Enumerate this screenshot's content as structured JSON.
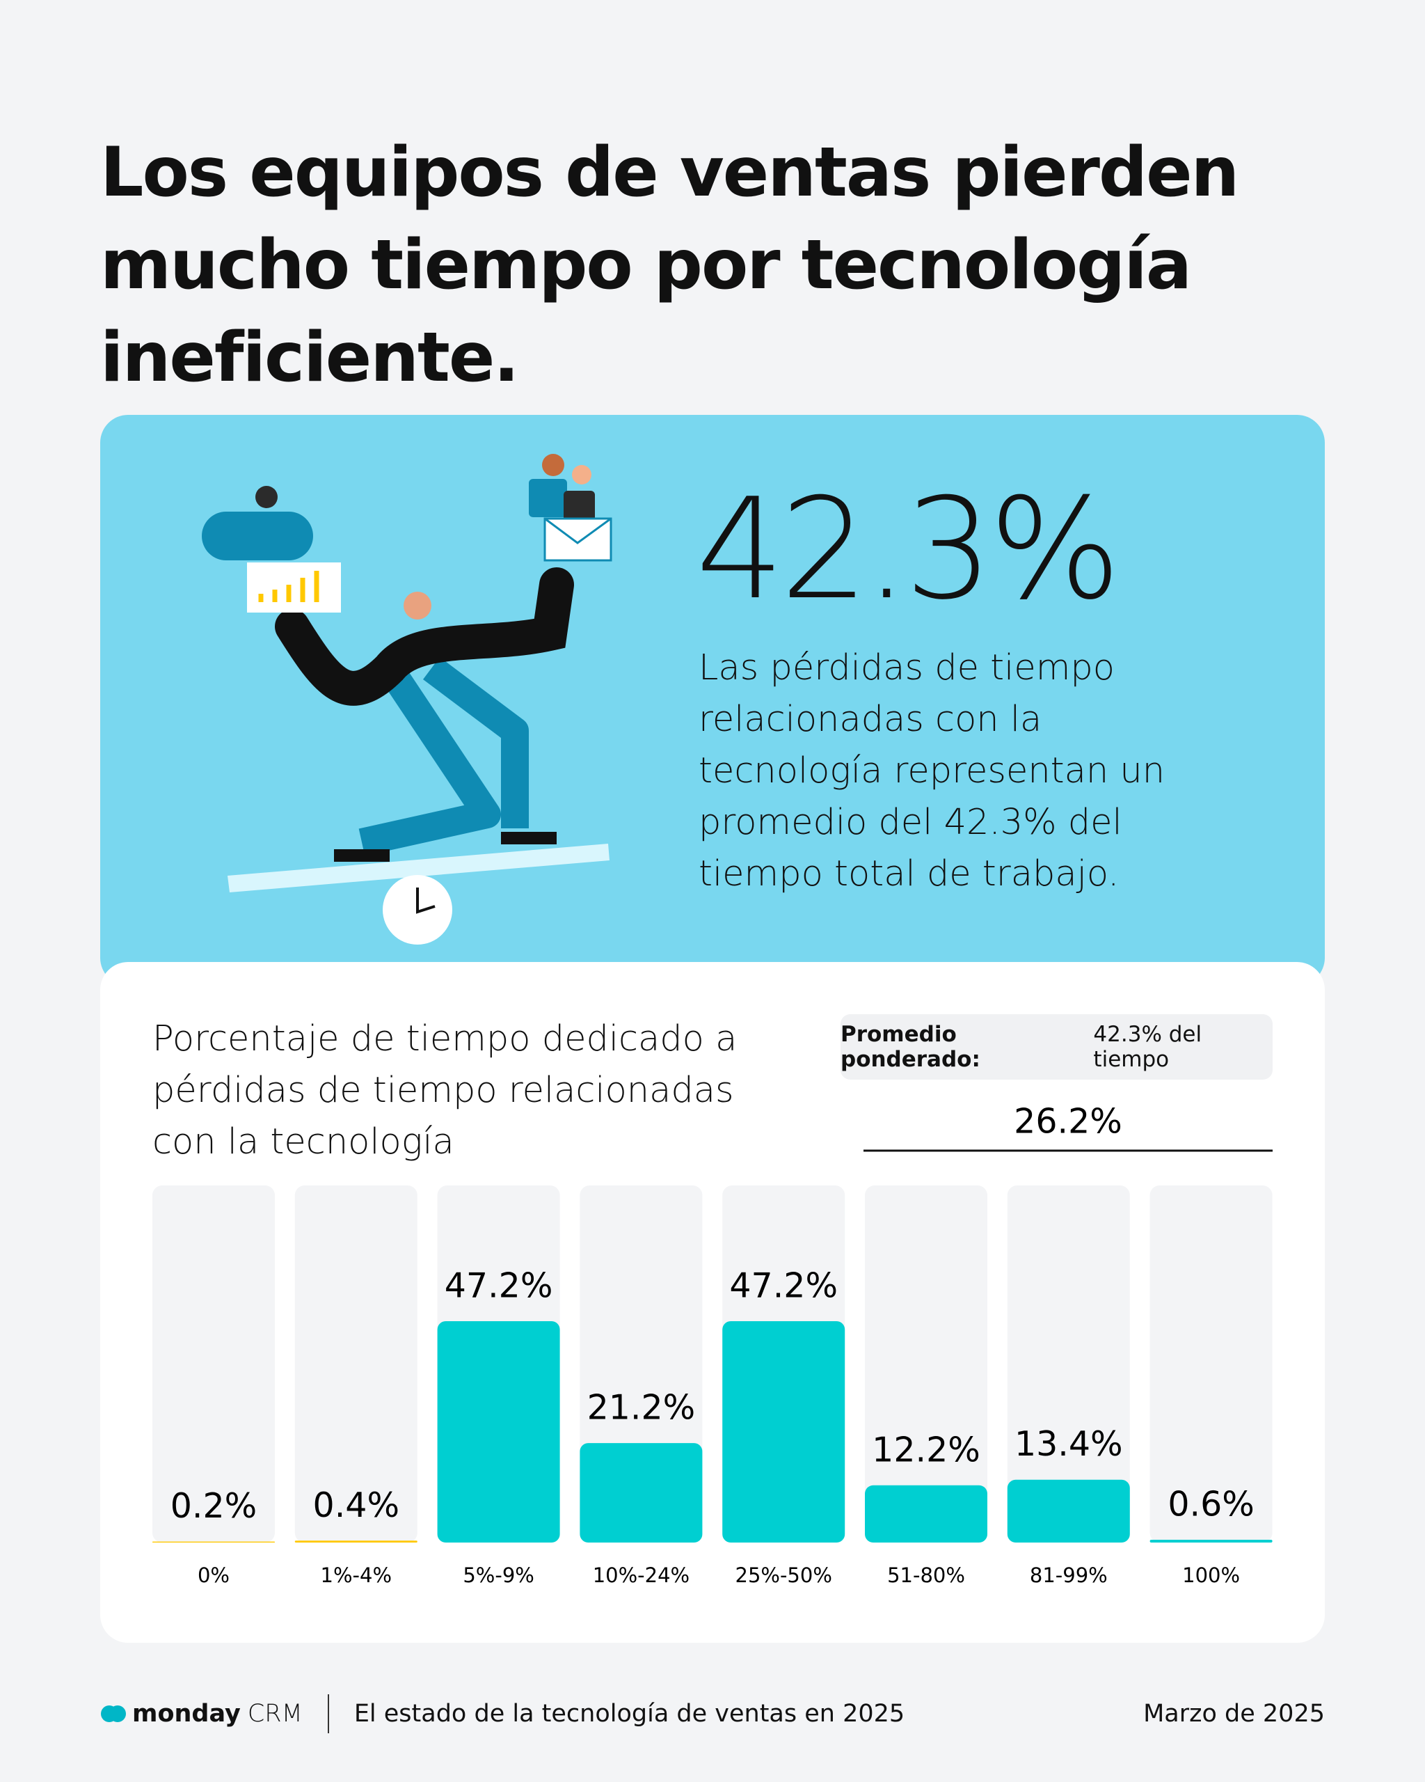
{
  "header": {
    "title": "Los equipos de ventas pierden mucho tiempo por tecnología ineficiente."
  },
  "stat": {
    "value": "42.3%",
    "description": "Las pérdidas de tiempo relacionadas con la tecnología representan un promedio del 42.3% del tiempo total de trabajo."
  },
  "chart_data": {
    "type": "bar",
    "title": "Porcentaje de tiempo dedicado a pérdidas de tiempo relacionadas con la tecnología",
    "weighted_average": {
      "label": "Promedio ponderado:",
      "text": "42.3% del tiempo"
    },
    "annotation": "26.2%",
    "categories": [
      "0%",
      "1%-4%",
      "5%-9%",
      "10%-24%",
      "25%-50%",
      "51-80%",
      "81-99%",
      "100%"
    ],
    "values": [
      0.2,
      0.4,
      47.2,
      21.2,
      47.2,
      12.2,
      13.4,
      0.6
    ],
    "value_labels": [
      "0.2%",
      "0.4%",
      "47.2%",
      "21.2%",
      "47.2%",
      "12.2%",
      "13.4%",
      "0.6%"
    ],
    "colors": [
      "#ffc800",
      "#ffc800",
      "#00cfd1",
      "#00cfd1",
      "#00cfd1",
      "#00cfd1",
      "#00cfd1",
      "#00cfd1"
    ]
  },
  "footer": {
    "brand": "monday",
    "product": "CRM",
    "report": "El estado de la tecnología de ventas en 2025",
    "date": "Marzo de 2025"
  }
}
